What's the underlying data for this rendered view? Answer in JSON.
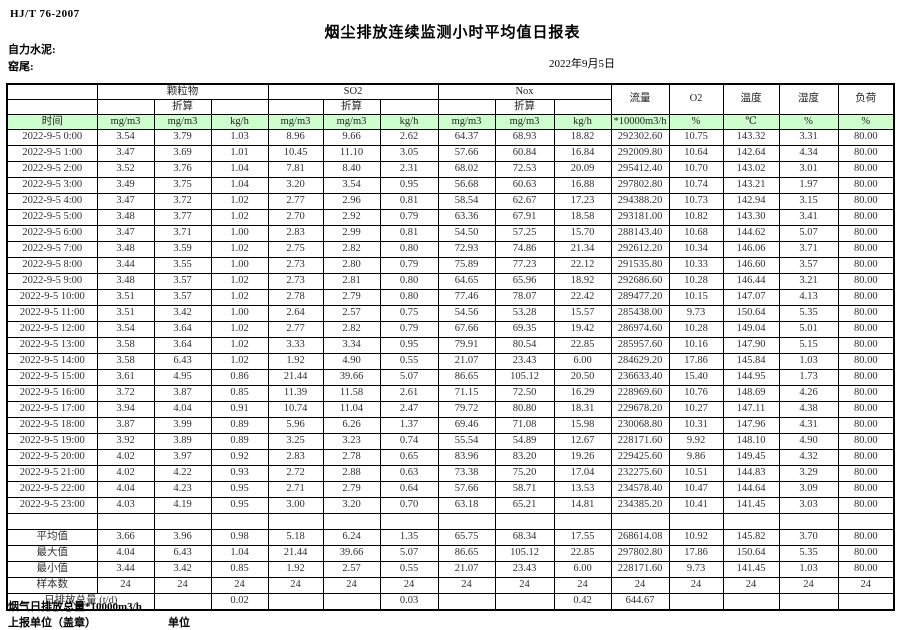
{
  "header": {
    "standard": "HJ/T 76-2007",
    "title": "烟尘排放连续监测小时平均值日报表",
    "company": "自力水泥:",
    "location": "窑尾:",
    "date": "2022年9月5日"
  },
  "table": {
    "time_label": "时间",
    "pm_label": "颗粒物",
    "so2_label": "SO2",
    "nox_label": "Nox",
    "converted_label": "折算",
    "flow_label": "流量",
    "o2_label": "O2",
    "temp_label": "温度",
    "humidity_label": "湿度",
    "load_label": "负荷",
    "units": [
      "mg/m3",
      "mg/m3",
      "kg/h",
      "mg/m3",
      "mg/m3",
      "kg/h",
      "mg/m3",
      "mg/m3",
      "kg/h",
      "*10000m3/h",
      "%",
      "℃",
      "%",
      "%"
    ],
    "rows": [
      {
        "time": "2022-9-5 0:00",
        "values": [
          "3.54",
          "3.79",
          "1.03",
          "8.96",
          "9.66",
          "2.62",
          "64.37",
          "68.93",
          "18.82",
          "292302.60",
          "10.75",
          "143.32",
          "3.31",
          "80.00"
        ]
      },
      {
        "time": "2022-9-5 1:00",
        "values": [
          "3.47",
          "3.69",
          "1.01",
          "10.45",
          "11.10",
          "3.05",
          "57.66",
          "60.84",
          "16.84",
          "292009.80",
          "10.64",
          "142.64",
          "4.34",
          "80.00"
        ]
      },
      {
        "time": "2022-9-5 2:00",
        "values": [
          "3.52",
          "3.76",
          "1.04",
          "7.81",
          "8.40",
          "2.31",
          "68.02",
          "72.53",
          "20.09",
          "295412.40",
          "10.70",
          "143.02",
          "3.01",
          "80.00"
        ]
      },
      {
        "time": "2022-9-5 3:00",
        "values": [
          "3.49",
          "3.75",
          "1.04",
          "3.20",
          "3.54",
          "0.95",
          "56.68",
          "60.63",
          "16.88",
          "297802.80",
          "10.74",
          "143.21",
          "1.97",
          "80.00"
        ]
      },
      {
        "time": "2022-9-5 4:00",
        "values": [
          "3.47",
          "3.72",
          "1.02",
          "2.77",
          "2.96",
          "0.81",
          "58.54",
          "62.67",
          "17.23",
          "294388.20",
          "10.73",
          "142.94",
          "3.15",
          "80.00"
        ]
      },
      {
        "time": "2022-9-5 5:00",
        "values": [
          "3.48",
          "3.77",
          "1.02",
          "2.70",
          "2.92",
          "0.79",
          "63.36",
          "67.91",
          "18.58",
          "293181.00",
          "10.82",
          "143.30",
          "3.41",
          "80.00"
        ]
      },
      {
        "time": "2022-9-5 6:00",
        "values": [
          "3.47",
          "3.71",
          "1.00",
          "2.83",
          "2.99",
          "0.81",
          "54.50",
          "57.25",
          "15.70",
          "288143.40",
          "10.68",
          "144.62",
          "5.07",
          "80.00"
        ]
      },
      {
        "time": "2022-9-5 7:00",
        "values": [
          "3.48",
          "3.59",
          "1.02",
          "2.75",
          "2.82",
          "0.80",
          "72.93",
          "74.86",
          "21.34",
          "292612.20",
          "10.34",
          "146.06",
          "3.71",
          "80.00"
        ]
      },
      {
        "time": "2022-9-5 8:00",
        "values": [
          "3.44",
          "3.55",
          "1.00",
          "2.73",
          "2.80",
          "0.79",
          "75.89",
          "77.23",
          "22.12",
          "291535.80",
          "10.33",
          "146.60",
          "3.57",
          "80.00"
        ]
      },
      {
        "time": "2022-9-5 9:00",
        "values": [
          "3.48",
          "3.57",
          "1.02",
          "2.73",
          "2.81",
          "0.80",
          "64.65",
          "65.96",
          "18.92",
          "292686.60",
          "10.28",
          "146.44",
          "3.21",
          "80.00"
        ]
      },
      {
        "time": "2022-9-5 10:00",
        "values": [
          "3.51",
          "3.57",
          "1.02",
          "2.78",
          "2.79",
          "0.80",
          "77.46",
          "78.07",
          "22.42",
          "289477.20",
          "10.15",
          "147.07",
          "4.13",
          "80.00"
        ]
      },
      {
        "time": "2022-9-5 11:00",
        "values": [
          "3.51",
          "3.42",
          "1.00",
          "2.64",
          "2.57",
          "0.75",
          "54.56",
          "53.28",
          "15.57",
          "285438.00",
          "9.73",
          "150.64",
          "5.35",
          "80.00"
        ]
      },
      {
        "time": "2022-9-5 12:00",
        "values": [
          "3.54",
          "3.64",
          "1.02",
          "2.77",
          "2.82",
          "0.79",
          "67.66",
          "69.35",
          "19.42",
          "286974.60",
          "10.28",
          "149.04",
          "5.01",
          "80.00"
        ]
      },
      {
        "time": "2022-9-5 13:00",
        "values": [
          "3.58",
          "3.64",
          "1.02",
          "3.33",
          "3.34",
          "0.95",
          "79.91",
          "80.54",
          "22.85",
          "285957.60",
          "10.16",
          "147.90",
          "5.15",
          "80.00"
        ]
      },
      {
        "time": "2022-9-5 14:00",
        "values": [
          "3.58",
          "6.43",
          "1.02",
          "1.92",
          "4.90",
          "0.55",
          "21.07",
          "23.43",
          "6.00",
          "284629.20",
          "17.86",
          "145.84",
          "1.03",
          "80.00"
        ]
      },
      {
        "time": "2022-9-5 15:00",
        "values": [
          "3.61",
          "4.95",
          "0.86",
          "21.44",
          "39.66",
          "5.07",
          "86.65",
          "105.12",
          "20.50",
          "236633.40",
          "15.40",
          "144.95",
          "1.73",
          "80.00"
        ]
      },
      {
        "time": "2022-9-5 16:00",
        "values": [
          "3.72",
          "3.87",
          "0.85",
          "11.39",
          "11.58",
          "2.61",
          "71.15",
          "72.50",
          "16.29",
          "228969.60",
          "10.76",
          "148.69",
          "4.26",
          "80.00"
        ]
      },
      {
        "time": "2022-9-5 17:00",
        "values": [
          "3.94",
          "4.04",
          "0.91",
          "10.74",
          "11.04",
          "2.47",
          "79.72",
          "80.80",
          "18.31",
          "229678.20",
          "10.27",
          "147.11",
          "4.38",
          "80.00"
        ]
      },
      {
        "time": "2022-9-5 18:00",
        "values": [
          "3.87",
          "3.99",
          "0.89",
          "5.96",
          "6.26",
          "1.37",
          "69.46",
          "71.08",
          "15.98",
          "230068.80",
          "10.31",
          "147.96",
          "4.31",
          "80.00"
        ]
      },
      {
        "time": "2022-9-5 19:00",
        "values": [
          "3.92",
          "3.89",
          "0.89",
          "3.25",
          "3.23",
          "0.74",
          "55.54",
          "54.89",
          "12.67",
          "228171.60",
          "9.92",
          "148.10",
          "4.90",
          "80.00"
        ]
      },
      {
        "time": "2022-9-5 20:00",
        "values": [
          "4.02",
          "3.97",
          "0.92",
          "2.83",
          "2.78",
          "0.65",
          "83.96",
          "83.20",
          "19.26",
          "229425.60",
          "9.86",
          "149.45",
          "4.32",
          "80.00"
        ]
      },
      {
        "time": "2022-9-5 21:00",
        "values": [
          "4.02",
          "4.22",
          "0.93",
          "2.72",
          "2.88",
          "0.63",
          "73.38",
          "75.20",
          "17.04",
          "232275.60",
          "10.51",
          "144.83",
          "3.29",
          "80.00"
        ]
      },
      {
        "time": "2022-9-5 22:00",
        "values": [
          "4.04",
          "4.23",
          "0.95",
          "2.71",
          "2.79",
          "0.64",
          "57.66",
          "58.71",
          "13.53",
          "234578.40",
          "10.47",
          "144.64",
          "3.09",
          "80.00"
        ]
      },
      {
        "time": "2022-9-5 23:00",
        "values": [
          "4.03",
          "4.19",
          "0.95",
          "3.00",
          "3.20",
          "0.70",
          "63.18",
          "65.21",
          "14.81",
          "234385.20",
          "10.41",
          "141.45",
          "3.03",
          "80.00"
        ]
      }
    ],
    "summary": [
      {
        "label": "平均值",
        "values": [
          "3.66",
          "3.96",
          "0.98",
          "5.18",
          "6.24",
          "1.35",
          "65.75",
          "68.34",
          "17.55",
          "268614.08",
          "10.92",
          "145.82",
          "3.70",
          "80.00"
        ]
      },
      {
        "label": "最大值",
        "values": [
          "4.04",
          "6.43",
          "1.04",
          "21.44",
          "39.66",
          "5.07",
          "86.65",
          "105.12",
          "22.85",
          "297802.80",
          "17.86",
          "150.64",
          "5.35",
          "80.00"
        ]
      },
      {
        "label": "最小值",
        "values": [
          "3.44",
          "3.42",
          "0.85",
          "1.92",
          "2.57",
          "0.55",
          "21.07",
          "23.43",
          "6.00",
          "228171.60",
          "9.73",
          "141.45",
          "1.03",
          "80.00"
        ]
      },
      {
        "label": "样本数",
        "values": [
          "24",
          "24",
          "24",
          "24",
          "24",
          "24",
          "24",
          "24",
          "24",
          "24",
          "24",
          "24",
          "24",
          "24"
        ]
      }
    ],
    "total": {
      "label": "日排放总量 (t/d)",
      "values": [
        "",
        "0.02",
        "",
        "",
        "0.03",
        "",
        "",
        "0.42",
        "644.67",
        "",
        "",
        "",
        ""
      ]
    }
  },
  "footer": {
    "line1": "烟气日排放总量*10000m3/h",
    "line2": "上报单位（盖章）",
    "unit_label": "单位"
  },
  "colors": {
    "header_green": "#ccffcc",
    "border": "#000000"
  }
}
